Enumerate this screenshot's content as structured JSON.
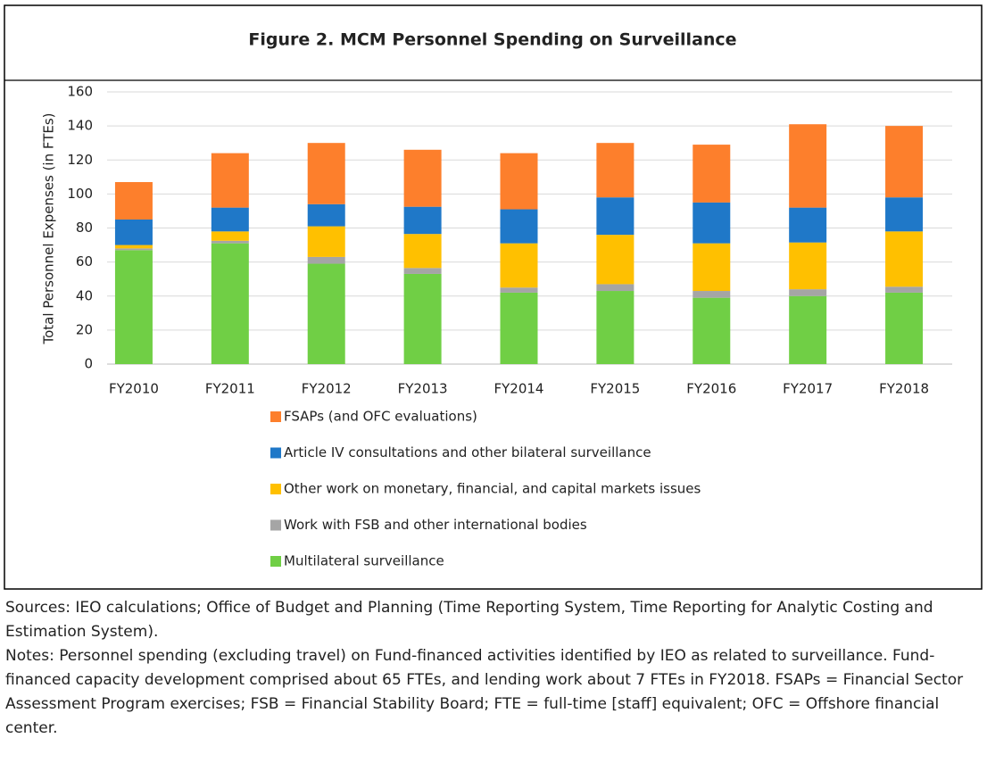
{
  "chart_data": {
    "type": "stacked_bar",
    "title": "Figure 2. MCM Personnel Spending on Surveillance",
    "y_label": "Total Personnel Expenses (in FTEs)",
    "categories": [
      "FY2010",
      "FY2011",
      "FY2012",
      "FY2013",
      "FY2014",
      "FY2015",
      "FY2016",
      "FY2017",
      "FY2018"
    ],
    "series": [
      {
        "name": "Multilateral surveillance",
        "color": "#70cf45",
        "values": [
          67,
          71,
          59,
          53,
          42,
          43,
          39,
          40,
          42
        ]
      },
      {
        "name": "Work with FSB and other international bodies",
        "color": "#a5a5a5",
        "values": [
          1,
          1.5,
          4,
          3.5,
          3,
          4,
          4,
          4,
          3.5
        ]
      },
      {
        "name": "Other work on monetary, financial, and capital markets issues",
        "color": "#ffc000",
        "values": [
          2,
          5.5,
          18,
          20,
          26,
          29,
          28,
          27.5,
          32.5
        ]
      },
      {
        "name": "Article IV consultations and other bilateral surveillance",
        "color": "#1f78c8",
        "values": [
          15,
          14,
          13,
          16,
          20,
          22,
          24,
          20.5,
          20
        ]
      },
      {
        "name": "FSAPs (and OFC evaluations)",
        "color": "#fd7f2c",
        "values": [
          22,
          32,
          36,
          33.5,
          33,
          32,
          34,
          49,
          42
        ]
      }
    ],
    "ylim": [
      0,
      160
    ],
    "yticks": [
      0,
      20,
      40,
      60,
      80,
      100,
      120,
      140,
      160
    ],
    "grid": true,
    "sources": "Sources: IEO calculations; Office of Budget and Planning (Time Reporting System, Time Reporting for Analytic Costing and Estimation System).",
    "notes": "Notes: Personnel spending (excluding travel) on Fund-financed activities identified by IEO as related to surveillance. Fund-financed capacity development comprised about 65 FTEs, and lending work about 7 FTEs in FY2018. FSAPs = Financial Sector Assessment Program exercises; FSB = Financial Stability Board; FTE = full-time [staff] equivalent; OFC = Offshore financial center."
  }
}
